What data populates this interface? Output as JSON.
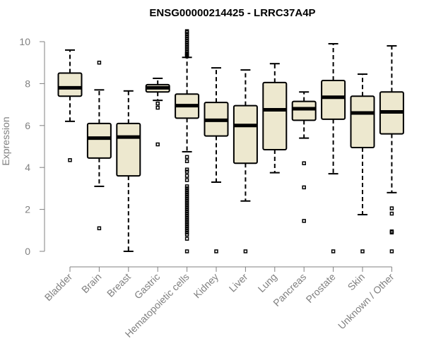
{
  "chart_data": {
    "type": "boxplot",
    "title": "ENSG00000214425 - LRRC37A4P",
    "xlabel": "",
    "ylabel": "Expression",
    "ylim": [
      0,
      10.5
    ],
    "yticks": [
      0,
      2,
      4,
      6,
      8,
      10
    ],
    "categories": [
      "Bladder",
      "Brain",
      "Breast",
      "Gastric",
      "Hematopoietic cells",
      "Kidney",
      "Liver",
      "Lung",
      "Pancreas",
      "Prostate",
      "Skin",
      "Unknown / Other"
    ],
    "boxes": [
      {
        "name": "Bladder",
        "whisker_low": 6.2,
        "q1": 7.4,
        "median": 7.8,
        "q3": 8.5,
        "whisker_high": 9.6,
        "outliers": [
          4.35
        ]
      },
      {
        "name": "Brain",
        "whisker_low": 3.1,
        "q1": 4.45,
        "median": 5.4,
        "q3": 6.1,
        "whisker_high": 7.7,
        "outliers": [
          9.0,
          1.1
        ]
      },
      {
        "name": "Breast",
        "whisker_low": 0.0,
        "q1": 3.6,
        "median": 5.45,
        "q3": 6.1,
        "whisker_high": 7.65,
        "outliers": []
      },
      {
        "name": "Gastric",
        "whisker_low": 7.2,
        "q1": 7.6,
        "median": 7.8,
        "q3": 7.95,
        "whisker_high": 8.25,
        "outliers": [
          7.05,
          6.85,
          5.1
        ]
      },
      {
        "name": "Hematopoietic cells",
        "whisker_low": 4.75,
        "q1": 6.35,
        "median": 6.95,
        "q3": 7.5,
        "whisker_high": 9.25,
        "outliers": [
          10.5,
          10.45,
          10.35,
          10.25,
          10.15,
          10.05,
          9.95,
          9.85,
          9.75,
          9.65,
          9.55,
          9.45,
          9.4,
          9.35,
          9.3,
          4.5,
          4.3,
          3.9,
          3.8,
          3.6,
          3.4,
          3.1,
          3.0,
          2.9,
          2.8,
          2.7,
          2.6,
          2.5,
          2.4,
          2.3,
          2.2,
          2.1,
          2.0,
          1.9,
          1.8,
          1.7,
          1.6,
          1.5,
          1.4,
          1.3,
          1.2,
          1.1,
          1.0,
          0.9,
          0.8,
          0.6,
          0.0
        ]
      },
      {
        "name": "Kidney",
        "whisker_low": 3.3,
        "q1": 5.5,
        "median": 6.25,
        "q3": 7.1,
        "whisker_high": 8.75,
        "outliers": [
          0.0
        ]
      },
      {
        "name": "Liver",
        "whisker_low": 2.4,
        "q1": 4.2,
        "median": 6.0,
        "q3": 6.95,
        "whisker_high": 8.65,
        "outliers": [
          0.0
        ]
      },
      {
        "name": "Lung",
        "whisker_low": 3.75,
        "q1": 4.85,
        "median": 6.75,
        "q3": 8.05,
        "whisker_high": 8.95,
        "outliers": []
      },
      {
        "name": "Pancreas",
        "whisker_low": 5.4,
        "q1": 6.25,
        "median": 6.8,
        "q3": 7.15,
        "whisker_high": 7.6,
        "outliers": [
          4.2,
          3.05,
          1.45
        ]
      },
      {
        "name": "Prostate",
        "whisker_low": 3.7,
        "q1": 6.3,
        "median": 7.35,
        "q3": 8.15,
        "whisker_high": 9.9,
        "outliers": [
          0.0
        ]
      },
      {
        "name": "Skin",
        "whisker_low": 1.75,
        "q1": 4.95,
        "median": 6.6,
        "q3": 7.4,
        "whisker_high": 8.45,
        "outliers": [
          0.0
        ]
      },
      {
        "name": "Unknown / Other",
        "whisker_low": 2.8,
        "q1": 5.6,
        "median": 6.65,
        "q3": 7.6,
        "whisker_high": 9.8,
        "outliers": [
          2.05,
          1.8,
          0.95,
          0.9,
          0.0
        ]
      }
    ],
    "colors": {
      "box_fill": "#ede8cf",
      "stroke": "#000000",
      "axis": "#808080"
    }
  }
}
